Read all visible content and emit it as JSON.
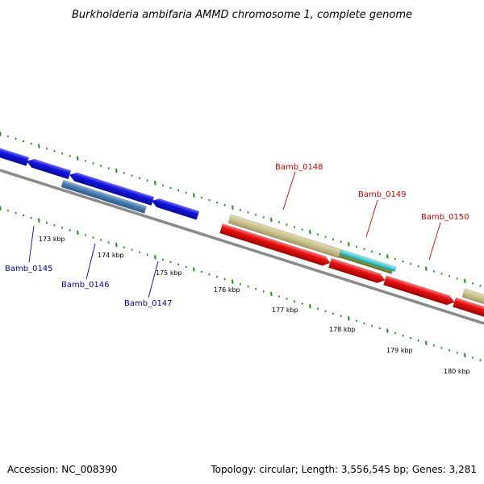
{
  "title": "Burkholderia ambifaria AMMD chromosome 1, complete genome",
  "accession_text": "Accession: NC_008390",
  "summary_text": "Topology: circular; Length: 3,556,545 bp; Genes: 3,281",
  "colors": {
    "backbone": "#8a8a8a",
    "tick": "#228b22",
    "label_forward": "#cc0000",
    "label_reverse": "#0000aa",
    "gene_blue": "#1414e6",
    "gene_steel": "#4a7fb5",
    "gene_red": "#ee1111",
    "gene_khaki": "#c8c08a",
    "gene_olive": "#6e8b2e",
    "gene_cyan": "#20d0d8"
  },
  "ruler": {
    "unit": "kbp",
    "major_ticks": [
      {
        "label": "173 kbp"
      },
      {
        "label": "174 kbp"
      },
      {
        "label": "175 kbp"
      },
      {
        "label": "176 kbp"
      },
      {
        "label": "177 kbp"
      },
      {
        "label": "178 kbp"
      },
      {
        "label": "179 kbp"
      },
      {
        "label": "180 kbp"
      }
    ]
  },
  "gene_labels": [
    {
      "text": "Bamb_0145",
      "strand": "reverse"
    },
    {
      "text": "Bamb_0146",
      "strand": "reverse"
    },
    {
      "text": "Bamb_0147",
      "strand": "reverse"
    },
    {
      "text": "Bamb_0148",
      "strand": "forward"
    },
    {
      "text": "Bamb_0149",
      "strand": "forward"
    },
    {
      "text": "Bamb_0150",
      "strand": "forward"
    }
  ]
}
